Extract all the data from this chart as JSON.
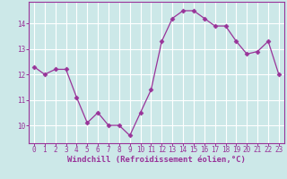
{
  "x": [
    0,
    1,
    2,
    3,
    4,
    5,
    6,
    7,
    8,
    9,
    10,
    11,
    12,
    13,
    14,
    15,
    16,
    17,
    18,
    19,
    20,
    21,
    22,
    23
  ],
  "y": [
    12.3,
    12.0,
    12.2,
    12.2,
    11.1,
    10.1,
    10.5,
    10.0,
    10.0,
    9.6,
    10.5,
    11.4,
    13.3,
    14.2,
    14.5,
    14.5,
    14.2,
    13.9,
    13.9,
    13.3,
    12.8,
    12.9,
    13.3,
    12.0
  ],
  "line_color": "#993399",
  "marker": "D",
  "marker_size": 2.5,
  "bg_color": "#cce8e8",
  "grid_color": "#ffffff",
  "xlabel": "Windchill (Refroidissement éolien,°C)",
  "xlim": [
    -0.5,
    23.5
  ],
  "ylim": [
    9.3,
    14.85
  ],
  "yticks": [
    10,
    11,
    12,
    13,
    14
  ],
  "xticks": [
    0,
    1,
    2,
    3,
    4,
    5,
    6,
    7,
    8,
    9,
    10,
    11,
    12,
    13,
    14,
    15,
    16,
    17,
    18,
    19,
    20,
    21,
    22,
    23
  ],
  "tick_fontsize": 5.5,
  "xlabel_fontsize": 6.5,
  "label_color": "#993399",
  "tick_color": "#993399",
  "spine_color": "#993399"
}
